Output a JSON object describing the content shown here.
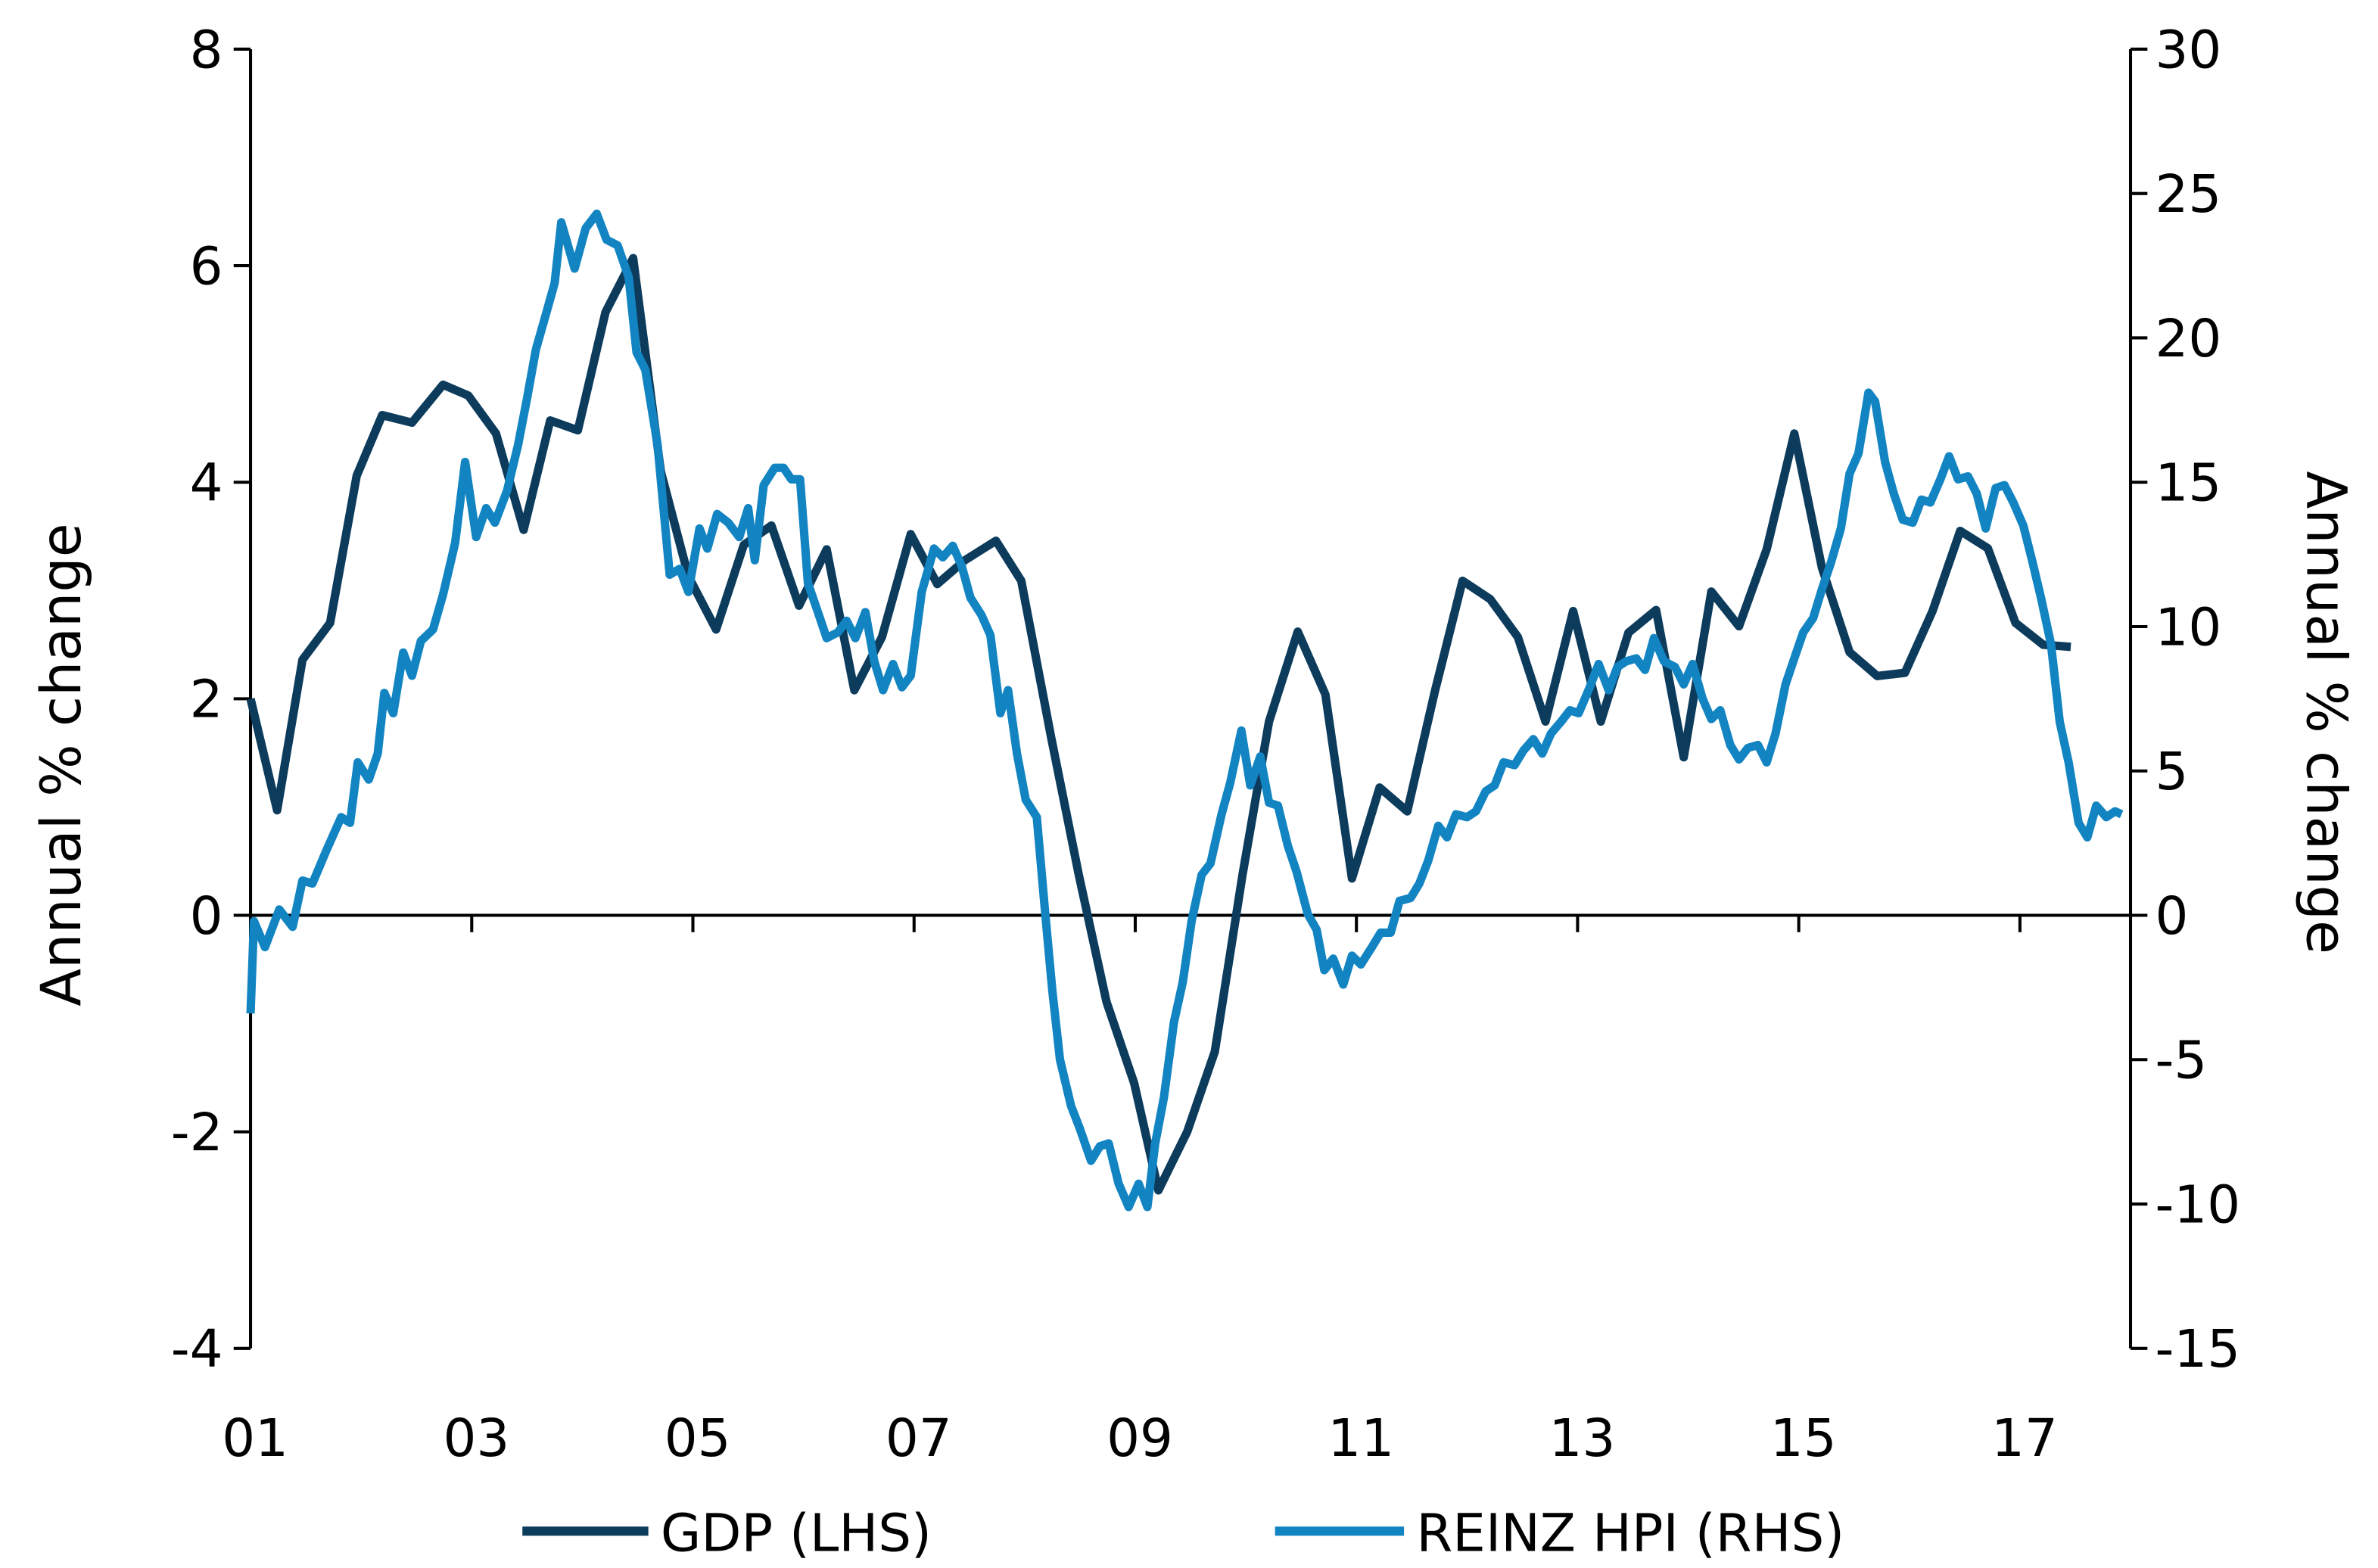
{
  "chart_data": {
    "type": "line",
    "title": "",
    "xlabel": "",
    "ylabel_left": "Annual % change",
    "ylabel_right": "Annual % change",
    "x_tick_labels": [
      "01",
      "03",
      "05",
      "07",
      "09",
      "11",
      "13",
      "15",
      "17"
    ],
    "x_ticks": [
      2001,
      2003,
      2005,
      2007,
      2009,
      2011,
      2013,
      2015,
      2017
    ],
    "xlim": [
      2001,
      2018
    ],
    "ylim_left": [
      -4,
      8
    ],
    "y_ticks_left": [
      -4,
      -2,
      0,
      2,
      4,
      6,
      8
    ],
    "ylim_right": [
      -15,
      30
    ],
    "y_ticks_right": [
      -15,
      -10,
      -5,
      0,
      5,
      10,
      15,
      20,
      25,
      30
    ],
    "grid": false,
    "legend_position": "bottom",
    "series": [
      {
        "name": "GDP (LHS)",
        "axis": "left",
        "color": "#0c3b5c",
        "points": [
          [
            2001.0,
            2.0
          ],
          [
            2001.24,
            0.97
          ],
          [
            2001.47,
            2.36
          ],
          [
            2001.72,
            2.7
          ],
          [
            2001.96,
            4.06
          ],
          [
            2002.19,
            4.62
          ],
          [
            2002.46,
            4.55
          ],
          [
            2002.74,
            4.9
          ],
          [
            2002.97,
            4.8
          ],
          [
            2003.22,
            4.45
          ],
          [
            2003.47,
            3.56
          ],
          [
            2003.71,
            4.57
          ],
          [
            2003.96,
            4.48
          ],
          [
            2004.21,
            5.57
          ],
          [
            2004.46,
            6.07
          ],
          [
            2004.71,
            4.1
          ],
          [
            2004.96,
            3.13
          ],
          [
            2005.21,
            2.64
          ],
          [
            2005.46,
            3.42
          ],
          [
            2005.71,
            3.6
          ],
          [
            2005.96,
            2.86
          ],
          [
            2006.21,
            3.38
          ],
          [
            2006.46,
            2.08
          ],
          [
            2006.71,
            2.57
          ],
          [
            2006.97,
            3.52
          ],
          [
            2007.21,
            3.06
          ],
          [
            2007.46,
            3.28
          ],
          [
            2007.74,
            3.46
          ],
          [
            2007.97,
            3.09
          ],
          [
            2008.24,
            1.64
          ],
          [
            2008.49,
            0.37
          ],
          [
            2008.74,
            -0.8
          ],
          [
            2008.99,
            -1.55
          ],
          [
            2009.21,
            -2.54
          ],
          [
            2009.47,
            -2.0
          ],
          [
            2009.72,
            -1.26
          ],
          [
            2009.97,
            0.37
          ],
          [
            2010.21,
            1.79
          ],
          [
            2010.47,
            2.62
          ],
          [
            2010.72,
            2.04
          ],
          [
            2010.96,
            0.34
          ],
          [
            2011.21,
            1.18
          ],
          [
            2011.46,
            0.96
          ],
          [
            2011.71,
            2.07
          ],
          [
            2011.96,
            3.09
          ],
          [
            2012.21,
            2.92
          ],
          [
            2012.46,
            2.57
          ],
          [
            2012.71,
            1.79
          ],
          [
            2012.96,
            2.81
          ],
          [
            2013.21,
            1.79
          ],
          [
            2013.46,
            2.61
          ],
          [
            2013.71,
            2.82
          ],
          [
            2013.96,
            1.46
          ],
          [
            2014.21,
            2.99
          ],
          [
            2014.46,
            2.67
          ],
          [
            2014.71,
            3.38
          ],
          [
            2014.96,
            4.45
          ],
          [
            2015.21,
            3.21
          ],
          [
            2015.46,
            2.43
          ],
          [
            2015.71,
            2.21
          ],
          [
            2015.96,
            2.24
          ],
          [
            2016.21,
            2.81
          ],
          [
            2016.46,
            3.55
          ],
          [
            2016.71,
            3.39
          ],
          [
            2016.96,
            2.7
          ],
          [
            2017.21,
            2.5
          ],
          [
            2017.46,
            2.48
          ]
        ]
      },
      {
        "name": "REINZ HPI (RHS)",
        "axis": "right",
        "color": "#1384c2",
        "points": [
          [
            2001.0,
            -3.4
          ],
          [
            2001.03,
            -0.2
          ],
          [
            2001.13,
            -1.1
          ],
          [
            2001.26,
            0.2
          ],
          [
            2001.38,
            -0.4
          ],
          [
            2001.47,
            1.2
          ],
          [
            2001.56,
            1.1
          ],
          [
            2001.68,
            2.2
          ],
          [
            2001.82,
            3.4
          ],
          [
            2001.9,
            3.2
          ],
          [
            2001.97,
            5.3
          ],
          [
            2002.07,
            4.7
          ],
          [
            2002.15,
            5.6
          ],
          [
            2002.21,
            7.7
          ],
          [
            2002.29,
            7.0
          ],
          [
            2002.38,
            9.1
          ],
          [
            2002.46,
            8.3
          ],
          [
            2002.54,
            9.5
          ],
          [
            2002.65,
            9.9
          ],
          [
            2002.74,
            11.1
          ],
          [
            2002.85,
            12.9
          ],
          [
            2002.94,
            15.7
          ],
          [
            2003.04,
            13.1
          ],
          [
            2003.13,
            14.1
          ],
          [
            2003.21,
            13.6
          ],
          [
            2003.32,
            14.7
          ],
          [
            2003.42,
            16.3
          ],
          [
            2003.5,
            17.9
          ],
          [
            2003.58,
            19.6
          ],
          [
            2003.67,
            20.8
          ],
          [
            2003.75,
            21.9
          ],
          [
            2003.81,
            24.0
          ],
          [
            2003.93,
            22.4
          ],
          [
            2004.03,
            23.8
          ],
          [
            2004.13,
            24.3
          ],
          [
            2004.22,
            23.4
          ],
          [
            2004.32,
            23.2
          ],
          [
            2004.42,
            22.1
          ],
          [
            2004.49,
            19.5
          ],
          [
            2004.57,
            18.9
          ],
          [
            2004.68,
            16.3
          ],
          [
            2004.79,
            11.8
          ],
          [
            2004.88,
            12.0
          ],
          [
            2004.96,
            11.2
          ],
          [
            2005.06,
            13.4
          ],
          [
            2005.13,
            12.7
          ],
          [
            2005.22,
            13.9
          ],
          [
            2005.32,
            13.6
          ],
          [
            2005.42,
            13.1
          ],
          [
            2005.5,
            14.1
          ],
          [
            2005.56,
            12.3
          ],
          [
            2005.64,
            14.9
          ],
          [
            2005.74,
            15.5
          ],
          [
            2005.82,
            15.5
          ],
          [
            2005.89,
            15.1
          ],
          [
            2005.97,
            15.1
          ],
          [
            2006.04,
            11.5
          ],
          [
            2006.13,
            10.5
          ],
          [
            2006.21,
            9.6
          ],
          [
            2006.31,
            9.8
          ],
          [
            2006.39,
            10.2
          ],
          [
            2006.47,
            9.6
          ],
          [
            2006.56,
            10.5
          ],
          [
            2006.64,
            8.8
          ],
          [
            2006.72,
            7.8
          ],
          [
            2006.81,
            8.7
          ],
          [
            2006.89,
            7.9
          ],
          [
            2006.97,
            8.3
          ],
          [
            2007.07,
            11.2
          ],
          [
            2007.18,
            12.7
          ],
          [
            2007.26,
            12.4
          ],
          [
            2007.35,
            12.8
          ],
          [
            2007.43,
            12.1
          ],
          [
            2007.51,
            11.0
          ],
          [
            2007.61,
            10.4
          ],
          [
            2007.69,
            9.7
          ],
          [
            2007.78,
            7.0
          ],
          [
            2007.85,
            7.8
          ],
          [
            2007.93,
            5.6
          ],
          [
            2008.01,
            4.0
          ],
          [
            2008.11,
            3.4
          ],
          [
            2008.18,
            0.3
          ],
          [
            2008.25,
            -2.6
          ],
          [
            2008.32,
            -5.0
          ],
          [
            2008.42,
            -6.6
          ],
          [
            2008.5,
            -7.4
          ],
          [
            2008.6,
            -8.5
          ],
          [
            2008.68,
            -8.0
          ],
          [
            2008.76,
            -7.9
          ],
          [
            2008.85,
            -9.3
          ],
          [
            2008.94,
            -10.1
          ],
          [
            2009.03,
            -9.3
          ],
          [
            2009.11,
            -10.1
          ],
          [
            2009.18,
            -7.9
          ],
          [
            2009.26,
            -6.3
          ],
          [
            2009.35,
            -3.7
          ],
          [
            2009.43,
            -2.3
          ],
          [
            2009.51,
            -0.2
          ],
          [
            2009.6,
            1.4
          ],
          [
            2009.68,
            1.8
          ],
          [
            2009.78,
            3.5
          ],
          [
            2009.86,
            4.6
          ],
          [
            2009.96,
            6.4
          ],
          [
            2010.04,
            4.5
          ],
          [
            2010.13,
            5.5
          ],
          [
            2010.21,
            3.9
          ],
          [
            2010.29,
            3.8
          ],
          [
            2010.38,
            2.4
          ],
          [
            2010.46,
            1.5
          ],
          [
            2010.56,
            0.05
          ],
          [
            2010.64,
            -0.5
          ],
          [
            2010.71,
            -1.9
          ],
          [
            2010.79,
            -1.5
          ],
          [
            2010.88,
            -2.4
          ],
          [
            2010.96,
            -1.4
          ],
          [
            2011.04,
            -1.7
          ],
          [
            2011.14,
            -1.1
          ],
          [
            2011.22,
            -0.6
          ],
          [
            2011.31,
            -0.6
          ],
          [
            2011.39,
            0.5
          ],
          [
            2011.49,
            0.6
          ],
          [
            2011.57,
            1.1
          ],
          [
            2011.65,
            1.9
          ],
          [
            2011.74,
            3.1
          ],
          [
            2011.82,
            2.7
          ],
          [
            2011.9,
            3.5
          ],
          [
            2012.0,
            3.4
          ],
          [
            2012.08,
            3.6
          ],
          [
            2012.17,
            4.3
          ],
          [
            2012.25,
            4.5
          ],
          [
            2012.33,
            5.3
          ],
          [
            2012.43,
            5.2
          ],
          [
            2012.51,
            5.7
          ],
          [
            2012.6,
            6.1
          ],
          [
            2012.68,
            5.6
          ],
          [
            2012.76,
            6.3
          ],
          [
            2012.85,
            6.7
          ],
          [
            2012.93,
            7.1
          ],
          [
            2013.01,
            7.0
          ],
          [
            2013.11,
            7.9
          ],
          [
            2013.19,
            8.7
          ],
          [
            2013.28,
            7.8
          ],
          [
            2013.36,
            8.6
          ],
          [
            2013.44,
            8.8
          ],
          [
            2013.53,
            8.9
          ],
          [
            2013.61,
            8.5
          ],
          [
            2013.69,
            9.6
          ],
          [
            2013.78,
            8.8
          ],
          [
            2013.88,
            8.6
          ],
          [
            2013.96,
            8.0
          ],
          [
            2014.04,
            8.7
          ],
          [
            2014.13,
            7.5
          ],
          [
            2014.21,
            6.8
          ],
          [
            2014.29,
            7.1
          ],
          [
            2014.38,
            5.9
          ],
          [
            2014.46,
            5.4
          ],
          [
            2014.54,
            5.8
          ],
          [
            2014.63,
            5.9
          ],
          [
            2014.71,
            5.3
          ],
          [
            2014.79,
            6.3
          ],
          [
            2014.88,
            8.0
          ],
          [
            2014.96,
            8.9
          ],
          [
            2015.04,
            9.8
          ],
          [
            2015.13,
            10.3
          ],
          [
            2015.21,
            11.3
          ],
          [
            2015.29,
            12.2
          ],
          [
            2015.38,
            13.4
          ],
          [
            2015.46,
            15.3
          ],
          [
            2015.54,
            16.0
          ],
          [
            2015.63,
            18.1
          ],
          [
            2015.69,
            17.8
          ],
          [
            2015.78,
            15.7
          ],
          [
            2015.86,
            14.6
          ],
          [
            2015.94,
            13.7
          ],
          [
            2016.03,
            13.6
          ],
          [
            2016.11,
            14.4
          ],
          [
            2016.19,
            14.3
          ],
          [
            2016.28,
            15.1
          ],
          [
            2016.36,
            15.9
          ],
          [
            2016.44,
            15.1
          ],
          [
            2016.53,
            15.2
          ],
          [
            2016.61,
            14.6
          ],
          [
            2016.69,
            13.4
          ],
          [
            2016.78,
            14.8
          ],
          [
            2016.86,
            14.9
          ],
          [
            2016.94,
            14.3
          ],
          [
            2017.03,
            13.5
          ],
          [
            2017.11,
            12.3
          ],
          [
            2017.19,
            11.0
          ],
          [
            2017.28,
            9.4
          ],
          [
            2017.36,
            6.7
          ],
          [
            2017.44,
            5.3
          ],
          [
            2017.53,
            3.2
          ],
          [
            2017.61,
            2.7
          ],
          [
            2017.69,
            3.8
          ],
          [
            2017.78,
            3.4
          ],
          [
            2017.86,
            3.6
          ],
          [
            2017.92,
            3.5
          ]
        ]
      }
    ]
  }
}
